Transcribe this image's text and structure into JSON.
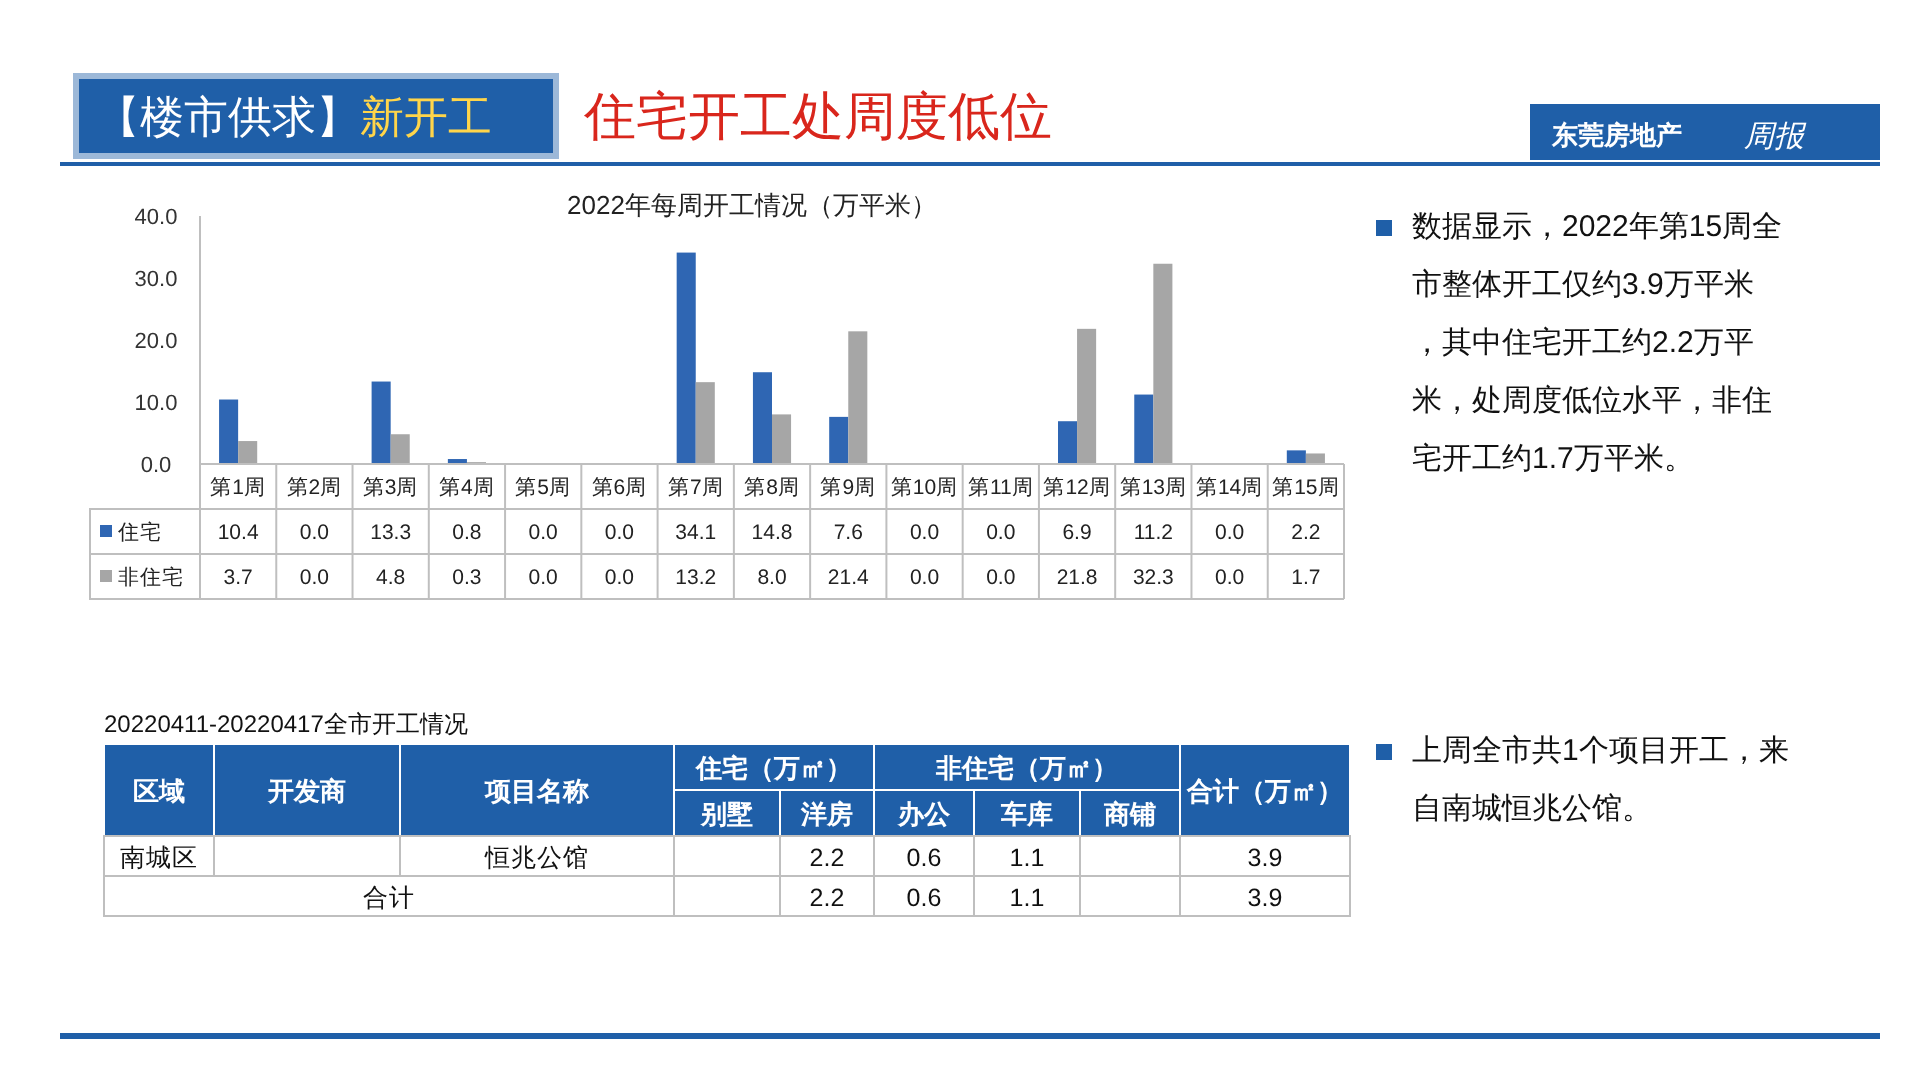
{
  "chart_data": {
    "type": "bar",
    "title": "2022年每周开工情况（万平米）",
    "categories": [
      "第1周",
      "第2周",
      "第3周",
      "第4周",
      "第5周",
      "第6周",
      "第7周",
      "第8周",
      "第9周",
      "第10周",
      "第11周",
      "第12周",
      "第13周",
      "第14周",
      "第15周"
    ],
    "series": [
      {
        "name": "住宅",
        "color": "#2f66b3",
        "values": [
          10.4,
          0.0,
          13.3,
          0.8,
          0.0,
          0.0,
          34.1,
          14.8,
          7.6,
          0.0,
          0.0,
          6.9,
          11.2,
          0.0,
          2.2
        ],
        "value_labels": [
          "10.4",
          "0.0",
          "13.3",
          "0.8",
          "0.0",
          "0.0",
          "34.1",
          "14.8",
          "7.6",
          "0.0",
          "0.0",
          "6.9",
          "11.2",
          "0.0",
          "2.2"
        ]
      },
      {
        "name": "非住宅",
        "color": "#a6a6a6",
        "values": [
          3.7,
          0.0,
          4.8,
          0.3,
          0.0,
          0.0,
          13.2,
          8.0,
          21.4,
          0.0,
          0.0,
          21.8,
          32.3,
          0.0,
          1.7
        ],
        "value_labels": [
          "3.7",
          "0.0",
          "4.8",
          "0.3",
          "0.0",
          "0.0",
          "13.2",
          "8.0",
          "21.4",
          "0.0",
          "0.0",
          "21.8",
          "32.3",
          "0.0",
          "1.7"
        ]
      }
    ],
    "ylim": [
      0,
      40
    ],
    "yticks": [
      {
        "value": 0,
        "label": "0.0"
      },
      {
        "value": 10,
        "label": "10.0"
      },
      {
        "value": 20,
        "label": "20.0"
      },
      {
        "value": 30,
        "label": "30.0"
      },
      {
        "value": 40,
        "label": "40.0"
      }
    ],
    "legend": "bottom",
    "annotations": [
      "【楼市供求】",
      "新开工",
      "住宅开工处周度低位",
      "东莞房地产",
      "周报",
      "数据显示，2022年第15周全市整体开工仅约3.9万平米，其中住宅开工约2.2万平米，处周度低位水平，非住宅开工约1.7万平米。",
      "上周全市共1个项目开工，来自南城恒兆公馆。",
      "20220411-20220417全市开工情况",
      "区域",
      "开发商",
      "项目名称",
      "住宅（万㎡）",
      "非住宅（万㎡）",
      "合计（万㎡）",
      "别墅",
      "洋房",
      "办公",
      "车库",
      "商铺",
      "南城区",
      "恒兆公馆",
      "2.2",
      "0.6",
      "1.1",
      "3.9",
      "合计",
      "2.2",
      "0.6",
      "1.1",
      "3.9"
    ]
  }
}
